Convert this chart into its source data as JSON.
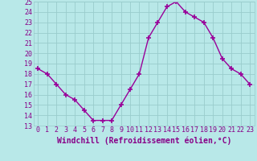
{
  "x": [
    0,
    1,
    2,
    3,
    4,
    5,
    6,
    7,
    8,
    9,
    10,
    11,
    12,
    13,
    14,
    15,
    16,
    17,
    18,
    19,
    20,
    21,
    22,
    23
  ],
  "y": [
    18.5,
    18.0,
    17.0,
    16.0,
    15.5,
    14.5,
    13.5,
    13.5,
    13.5,
    15.0,
    16.5,
    18.0,
    21.5,
    23.0,
    24.5,
    25.0,
    24.0,
    23.5,
    23.0,
    21.5,
    19.5,
    18.5,
    18.0,
    17.0
  ],
  "line_color": "#990099",
  "bg_color": "#b8e8e8",
  "grid_color": "#99cccc",
  "xlabel": "Windchill (Refroidissement éolien,°C)",
  "ylim": [
    13,
    25
  ],
  "xlim_min": -0.5,
  "xlim_max": 23.5,
  "yticks": [
    13,
    14,
    15,
    16,
    17,
    18,
    19,
    20,
    21,
    22,
    23,
    24,
    25
  ],
  "xticks": [
    0,
    1,
    2,
    3,
    4,
    5,
    6,
    7,
    8,
    9,
    10,
    11,
    12,
    13,
    14,
    15,
    16,
    17,
    18,
    19,
    20,
    21,
    22,
    23
  ],
  "marker": "+",
  "markersize": 4,
  "markeredgewidth": 1.2,
  "linewidth": 1.0,
  "xlabel_fontsize": 7,
  "tick_fontsize": 6,
  "label_color": "#880088",
  "spine_color": "#99cccc"
}
